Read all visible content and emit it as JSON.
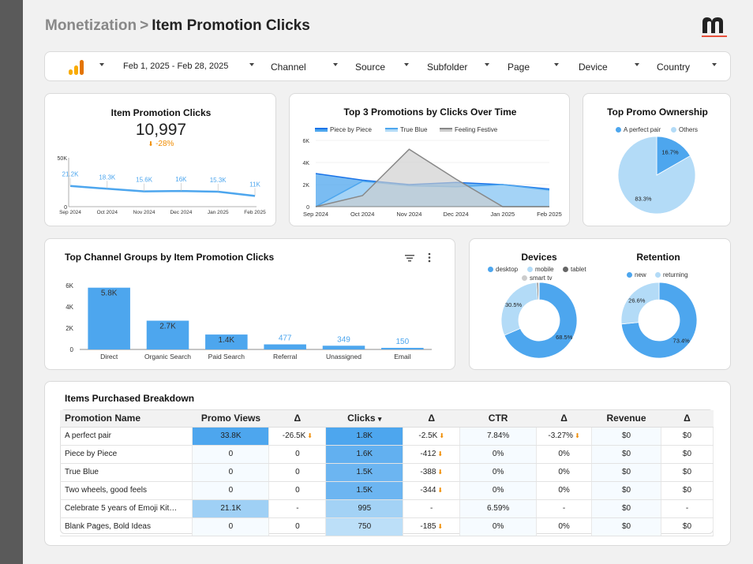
{
  "header": {
    "crumb": "Monetization",
    "separator": ">",
    "title": "Item Promotion Clicks"
  },
  "filters": {
    "date_range": "Feb 1, 2025 - Feb 28, 2025",
    "items": [
      "Channel",
      "Source",
      "Subfolder",
      "Page",
      "Device",
      "Country"
    ]
  },
  "scorecard": {
    "title": "Item Promotion Clicks",
    "value": "10,997",
    "delta": "-28%",
    "delta_color": "#f08c00"
  },
  "colors": {
    "primary": "#4da6ee",
    "light": "#b3dbf7",
    "dark": "#1a73e8",
    "gray": "#888888",
    "tablet": "#666666"
  },
  "sparkline": {
    "ymax_label": "50K",
    "ymin_label": "0",
    "chart_data": {
      "type": "line",
      "x": [
        "Sep 2024",
        "Oct 2024",
        "Nov 2024",
        "Dec 2024",
        "Jan 2025",
        "Feb 2025"
      ],
      "values": [
        21200,
        18300,
        15600,
        16000,
        15300,
        11000
      ],
      "labels": [
        "21.2K",
        "18.3K",
        "15.6K",
        "16K",
        "15.3K",
        "11K"
      ],
      "ylim": [
        0,
        50000
      ]
    }
  },
  "top3": {
    "title": "Top 3 Promotions by Clicks Over Time",
    "chart_data": {
      "type": "area",
      "x": [
        "Sep 2024",
        "Oct 2024",
        "Nov 2024",
        "Dec 2024",
        "Jan 2025",
        "Feb 2025"
      ],
      "yticks": [
        "6K",
        "4K",
        "2K",
        "0"
      ],
      "ylim": [
        0,
        6000
      ],
      "series": [
        {
          "name": "Piece by Piece",
          "values": [
            3000,
            2400,
            2000,
            2200,
            2000,
            1600
          ],
          "color": "#1a73e8",
          "fill": "#4da6ee"
        },
        {
          "name": "True Blue",
          "values": [
            0,
            2300,
            1900,
            1800,
            2000,
            1500
          ],
          "color": "#4da6ee",
          "fill": "#b3dbf7"
        },
        {
          "name": "Feeling Festive",
          "values": [
            0,
            1000,
            5200,
            2500,
            0,
            0
          ],
          "color": "#888888",
          "fill": "#cccccc"
        }
      ]
    }
  },
  "ownership": {
    "title": "Top Promo Ownership",
    "chart_data": {
      "type": "pie",
      "labels": [
        "A perfect pair",
        "Others"
      ],
      "values": [
        16.7,
        83.3
      ],
      "value_labels": [
        "16.7%",
        "83.3%"
      ],
      "colors": [
        "#4da6ee",
        "#b3dbf7"
      ]
    }
  },
  "channels": {
    "title": "Top Channel Groups by Item Promotion Clicks",
    "chart_data": {
      "type": "bar",
      "categories": [
        "Direct",
        "Organic Search",
        "Paid Search",
        "Referral",
        "Unassigned",
        "Email"
      ],
      "values": [
        5800,
        2700,
        1400,
        477,
        349,
        150
      ],
      "value_labels": [
        "5.8K",
        "2.7K",
        "1.4K",
        "477",
        "349",
        "150"
      ],
      "yticks": [
        "6K",
        "4K",
        "2K",
        "0"
      ],
      "ylim": [
        0,
        6000
      ]
    }
  },
  "devices": {
    "title": "Devices",
    "chart_data": {
      "type": "pie",
      "labels": [
        "desktop",
        "mobile",
        "tablet",
        "smart tv"
      ],
      "values": [
        68.5,
        30.5,
        0.7,
        0.3
      ],
      "value_labels": [
        "68.5%",
        "30.5%",
        "",
        ""
      ],
      "colors": [
        "#4da6ee",
        "#b3dbf7",
        "#666666",
        "#cccccc"
      ]
    }
  },
  "retention": {
    "title": "Retention",
    "chart_data": {
      "type": "pie",
      "labels": [
        "new",
        "returning"
      ],
      "values": [
        73.4,
        26.6
      ],
      "value_labels": [
        "73.4%",
        "26.6%"
      ],
      "colors": [
        "#4da6ee",
        "#b3dbf7"
      ]
    }
  },
  "table": {
    "title": "Items Purchased Breakdown",
    "headers": [
      "Promotion Name",
      "Promo Views",
      "Δ",
      "Clicks",
      "Δ",
      "CTR",
      "Δ",
      "Revenue",
      "Δ"
    ],
    "sort_indicator": "▾",
    "rows": [
      {
        "name": "A perfect pair",
        "views": "33.8K",
        "dviews": "-26.5K",
        "clicks": "1.8K",
        "dclicks": "-2.5K",
        "ctr": "7.84%",
        "dctr": "-3.27%",
        "rev": "$0",
        "drev": "$0",
        "vshade": "#4da6ee",
        "cshade": "#4da6ee"
      },
      {
        "name": "Piece by Piece",
        "views": "0",
        "dviews": "0",
        "clicks": "1.6K",
        "dclicks": "-412",
        "ctr": "0%",
        "dctr": "0%",
        "rev": "$0",
        "drev": "$0",
        "vshade": "#f6fbff",
        "cshade": "#62b0f0"
      },
      {
        "name": "True Blue",
        "views": "0",
        "dviews": "0",
        "clicks": "1.5K",
        "dclicks": "-388",
        "ctr": "0%",
        "dctr": "0%",
        "rev": "$0",
        "drev": "$0",
        "vshade": "#f6fbff",
        "cshade": "#6cb5f1"
      },
      {
        "name": "Two wheels, good feels",
        "views": "0",
        "dviews": "0",
        "clicks": "1.5K",
        "dclicks": "-344",
        "ctr": "0%",
        "dctr": "0%",
        "rev": "$0",
        "drev": "$0",
        "vshade": "#f6fbff",
        "cshade": "#6cb5f1"
      },
      {
        "name": "Celebrate 5 years of Emoji Kit…",
        "views": "21.1K",
        "dviews": "-",
        "clicks": "995",
        "dclicks": "-",
        "ctr": "6.59%",
        "dctr": "-",
        "rev": "$0",
        "drev": "-",
        "vshade": "#9fd0f5",
        "cshade": "#a3d2f5"
      },
      {
        "name": "Blank Pages, Bold Ideas",
        "views": "0",
        "dviews": "0",
        "clicks": "750",
        "dclicks": "-185",
        "ctr": "0%",
        "dctr": "0%",
        "rev": "$0",
        "drev": "$0",
        "vshade": "#f6fbff",
        "cshade": "#bcdff8"
      }
    ]
  }
}
